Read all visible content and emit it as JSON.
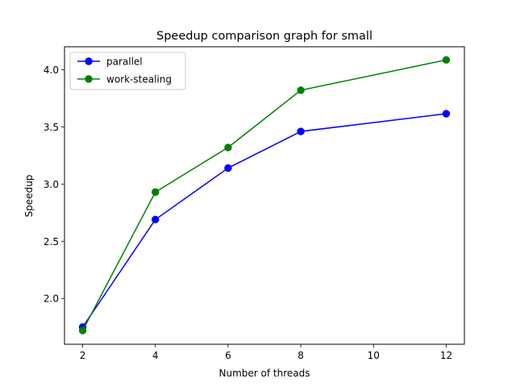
{
  "chart_data": {
    "type": "line",
    "title": "Speedup comparison graph for small",
    "xlabel": "Number of threads",
    "ylabel": "Speedup",
    "x": [
      2,
      4,
      6,
      8,
      12
    ],
    "xticks": [
      "2",
      "4",
      "6",
      "8",
      "10",
      "12"
    ],
    "yticks": [
      "2.0",
      "2.5",
      "3.0",
      "3.5",
      "4.0"
    ],
    "xlim": [
      1.5,
      12.5
    ],
    "ylim": [
      1.6,
      4.2
    ],
    "grid": false,
    "legend_position": "top-left",
    "series": [
      {
        "name": "parallel",
        "color": "#0000ff",
        "marker": "circle",
        "values": [
          1.75,
          2.69,
          3.14,
          3.46,
          3.615
        ]
      },
      {
        "name": "work-stealing",
        "color": "#008000",
        "marker": "circle",
        "values": [
          1.72,
          2.93,
          3.32,
          3.82,
          4.085
        ]
      }
    ]
  }
}
